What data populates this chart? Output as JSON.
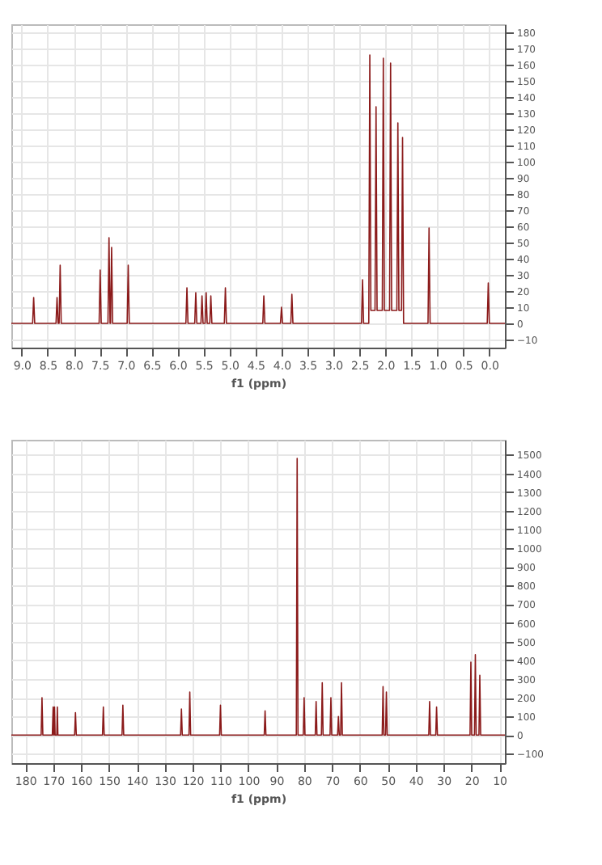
{
  "chart_data": [
    {
      "type": "line",
      "xlabel": "f1 (ppm)",
      "xlim": [
        9.2,
        -0.3
      ],
      "ylim": [
        -15,
        185
      ],
      "xticks": [
        {
          "value": 9,
          "label": "9.0"
        },
        {
          "value": 8.5,
          "label": "8.5"
        },
        {
          "value": 8,
          "label": "8.0"
        },
        {
          "value": 7.5,
          "label": "7.5"
        },
        {
          "value": 7,
          "label": "7.0"
        },
        {
          "value": 6.5,
          "label": "6.5"
        },
        {
          "value": 6,
          "label": "6.0"
        },
        {
          "value": 5.5,
          "label": "5.5"
        },
        {
          "value": 5,
          "label": "5.0"
        },
        {
          "value": 4.5,
          "label": "4.5"
        },
        {
          "value": 4,
          "label": "4.0"
        },
        {
          "value": 3.5,
          "label": "3.5"
        },
        {
          "value": 3,
          "label": "3.0"
        },
        {
          "value": 2.5,
          "label": "2.5"
        },
        {
          "value": 2,
          "label": "2.0"
        },
        {
          "value": 1.5,
          "label": "1.5"
        },
        {
          "value": 1,
          "label": "1.0"
        },
        {
          "value": 0.5,
          "label": "0.5"
        },
        {
          "value": 0,
          "label": "0.0"
        }
      ],
      "yticks": [
        -10,
        0,
        10,
        20,
        30,
        40,
        50,
        60,
        70,
        80,
        90,
        100,
        110,
        120,
        130,
        140,
        150,
        160,
        170,
        180
      ],
      "grid": true,
      "marker": "none",
      "line_style": "solid",
      "series": [
        {
          "color": "#8b1a1a",
          "x": [
            9.2,
            8.79,
            8.77,
            8.75,
            8.34,
            8.32,
            8.3,
            8.28,
            8.26,
            8.24,
            7.51,
            7.49,
            7.47,
            7.34,
            7.32,
            7.3,
            7.29,
            7.27,
            7.25,
            6.97,
            6.95,
            6.93,
            5.84,
            5.82,
            5.8,
            5.67,
            5.65,
            5.63,
            5.55,
            5.53,
            5.51,
            5.47,
            5.45,
            5.43,
            5.38,
            5.36,
            5.34,
            5.1,
            5.08,
            5.06,
            4.36,
            4.34,
            4.32,
            4.02,
            4.0,
            3.98,
            3.82,
            3.8,
            3.78,
            2.46,
            2.44,
            2.42,
            2.32,
            2.3,
            2.28,
            2.2,
            2.18,
            2.16,
            2.06,
            2.04,
            2.02,
            1.92,
            1.9,
            1.88,
            1.78,
            1.76,
            1.74,
            1.69,
            1.67,
            1.65,
            1.18,
            1.16,
            1.14,
            0.04,
            0.02,
            0.0,
            -0.3
          ],
          "values": [
            0,
            0,
            16,
            0,
            0,
            16,
            0,
            0,
            36,
            0,
            0,
            33,
            0,
            0,
            53,
            0,
            0,
            47,
            0,
            0,
            36,
            0,
            0,
            22,
            0,
            0,
            19,
            0,
            0,
            17,
            0,
            0,
            19,
            0,
            0,
            17,
            0,
            0,
            22,
            0,
            0,
            17,
            0,
            0,
            10,
            0,
            0,
            18,
            0,
            0,
            27,
            0,
            0,
            166,
            8,
            8,
            134,
            8,
            8,
            164,
            8,
            8,
            161,
            8,
            8,
            124,
            8,
            8,
            115,
            0,
            0,
            59,
            0,
            0,
            25,
            0,
            0
          ]
        }
      ]
    },
    {
      "type": "line",
      "xlabel": "f1 (ppm)",
      "xlim": [
        185,
        8
      ],
      "ylim": [
        -150,
        1580
      ],
      "xticks": [
        180,
        170,
        160,
        150,
        140,
        130,
        120,
        110,
        100,
        90,
        80,
        70,
        60,
        50,
        40,
        30,
        20,
        10
      ],
      "yticks": [
        -100,
        0,
        100,
        200,
        300,
        400,
        500,
        600,
        700,
        800,
        900,
        1000,
        1100,
        1200,
        1300,
        1400,
        1500
      ],
      "grid": true,
      "marker": "none",
      "line_style": "solid",
      "series": [
        {
          "color": "#8b1a1a",
          "x": [
            185,
            174.3,
            174,
            173.7,
            170.3,
            170,
            169.8,
            169.7,
            169.5,
            169.3,
            168.7,
            168.5,
            168.3,
            162.3,
            162,
            161.7,
            152.3,
            152,
            151.7,
            145.3,
            145,
            144.7,
            124.3,
            124,
            123.7,
            121.3,
            121,
            120.7,
            110.3,
            110,
            109.7,
            94.3,
            94,
            93.7,
            82.8,
            82.5,
            82.2,
            80.3,
            80,
            79.7,
            76,
            75.7,
            75.4,
            73.8,
            73.5,
            73.2,
            70.7,
            70.4,
            70.1,
            68,
            67.7,
            67.4,
            66.9,
            66.6,
            66.3,
            52,
            51.7,
            51.4,
            50.8,
            50.5,
            50.2,
            35.3,
            35,
            34.7,
            32.8,
            32.5,
            32.2,
            20.5,
            20.2,
            19.9,
            18.9,
            18.6,
            18.3,
            17.3,
            17,
            16.7,
            8
          ],
          "values": [
            0,
            0,
            200,
            0,
            0,
            150,
            0,
            0,
            150,
            0,
            0,
            150,
            0,
            0,
            120,
            0,
            0,
            150,
            0,
            0,
            160,
            0,
            0,
            140,
            0,
            0,
            230,
            0,
            0,
            160,
            0,
            0,
            130,
            0,
            0,
            1480,
            0,
            0,
            200,
            0,
            0,
            180,
            0,
            0,
            280,
            0,
            0,
            200,
            0,
            0,
            100,
            0,
            0,
            280,
            0,
            0,
            260,
            0,
            0,
            230,
            0,
            0,
            180,
            0,
            0,
            150,
            0,
            0,
            390,
            0,
            0,
            430,
            0,
            0,
            320,
            0,
            0
          ]
        }
      ]
    }
  ]
}
